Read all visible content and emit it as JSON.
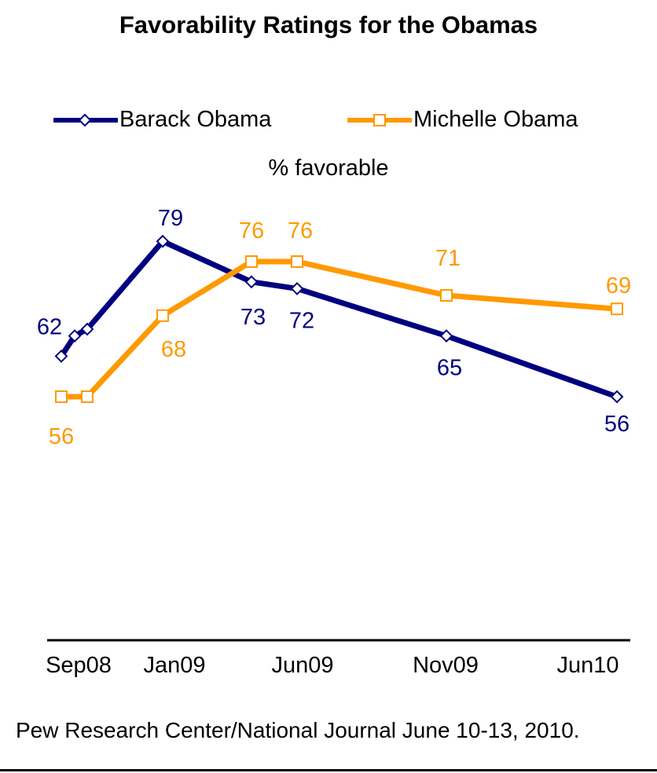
{
  "chart_data": {
    "type": "line",
    "title": "Favorability Ratings for the Obamas",
    "subtitle": "% favorable",
    "xlabel": "",
    "ylabel": "",
    "x_ticks": [
      "Sep08",
      "Jan09",
      "Jun09",
      "Nov09",
      "Jun10"
    ],
    "ylim": [
      50,
      85
    ],
    "grid": false,
    "legend": "top",
    "series": [
      {
        "name": "Barack Obama",
        "color": "#000080",
        "marker": "diamond",
        "x": [
          "Aug08",
          "Sep08",
          "Oct08",
          "Jan09",
          "Apr09",
          "Jun09",
          "Nov09",
          "Jun10"
        ],
        "values": [
          62,
          65,
          66,
          79,
          73,
          72,
          65,
          56
        ],
        "labels": [
          "62",
          "",
          "",
          "79",
          "73",
          "72",
          "65",
          "56"
        ]
      },
      {
        "name": "Michelle Obama",
        "color": "#FF9900",
        "marker": "square",
        "x": [
          "Aug08",
          "Oct08",
          "Jan09",
          "Apr09",
          "Jun09",
          "Nov09",
          "Jun10"
        ],
        "values": [
          56,
          56,
          68,
          76,
          76,
          71,
          69
        ],
        "labels": [
          "56",
          "",
          "68",
          "76",
          "76",
          "71",
          "69"
        ]
      }
    ],
    "source": "Pew Research Center/National Journal June 10-13, 2010."
  }
}
